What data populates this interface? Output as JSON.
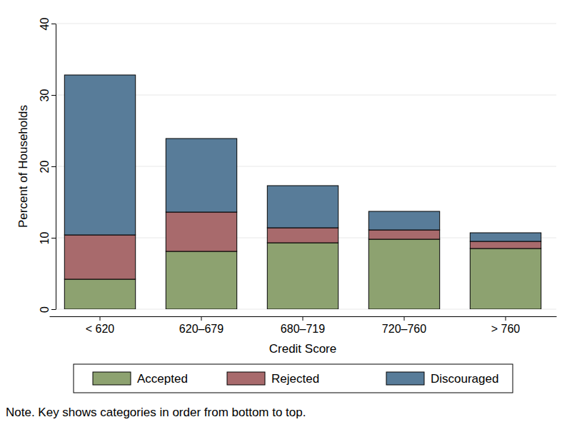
{
  "chart_data": {
    "type": "bar",
    "stacked": true,
    "grid": true,
    "legend": "bottom",
    "x_label": "Credit Score",
    "y_label": "Percent of Households",
    "note": "Note. Key shows categories in order from bottom to top.",
    "categories": [
      "< 620",
      "620–679",
      "680–719",
      "720–760",
      "> 760"
    ],
    "ylim": [
      0,
      40
    ],
    "yticks": [
      0,
      10,
      20,
      30,
      40
    ],
    "series": [
      {
        "name": "Accepted",
        "color": "#8da270",
        "values": [
          4.2,
          8.1,
          9.3,
          9.8,
          8.5
        ]
      },
      {
        "name": "Rejected",
        "color": "#a86a6c",
        "values": [
          6.2,
          5.5,
          2.1,
          1.3,
          1.0
        ]
      },
      {
        "name": "Discouraged",
        "color": "#587c99",
        "values": [
          22.4,
          10.3,
          5.9,
          2.6,
          1.2
        ]
      }
    ]
  }
}
